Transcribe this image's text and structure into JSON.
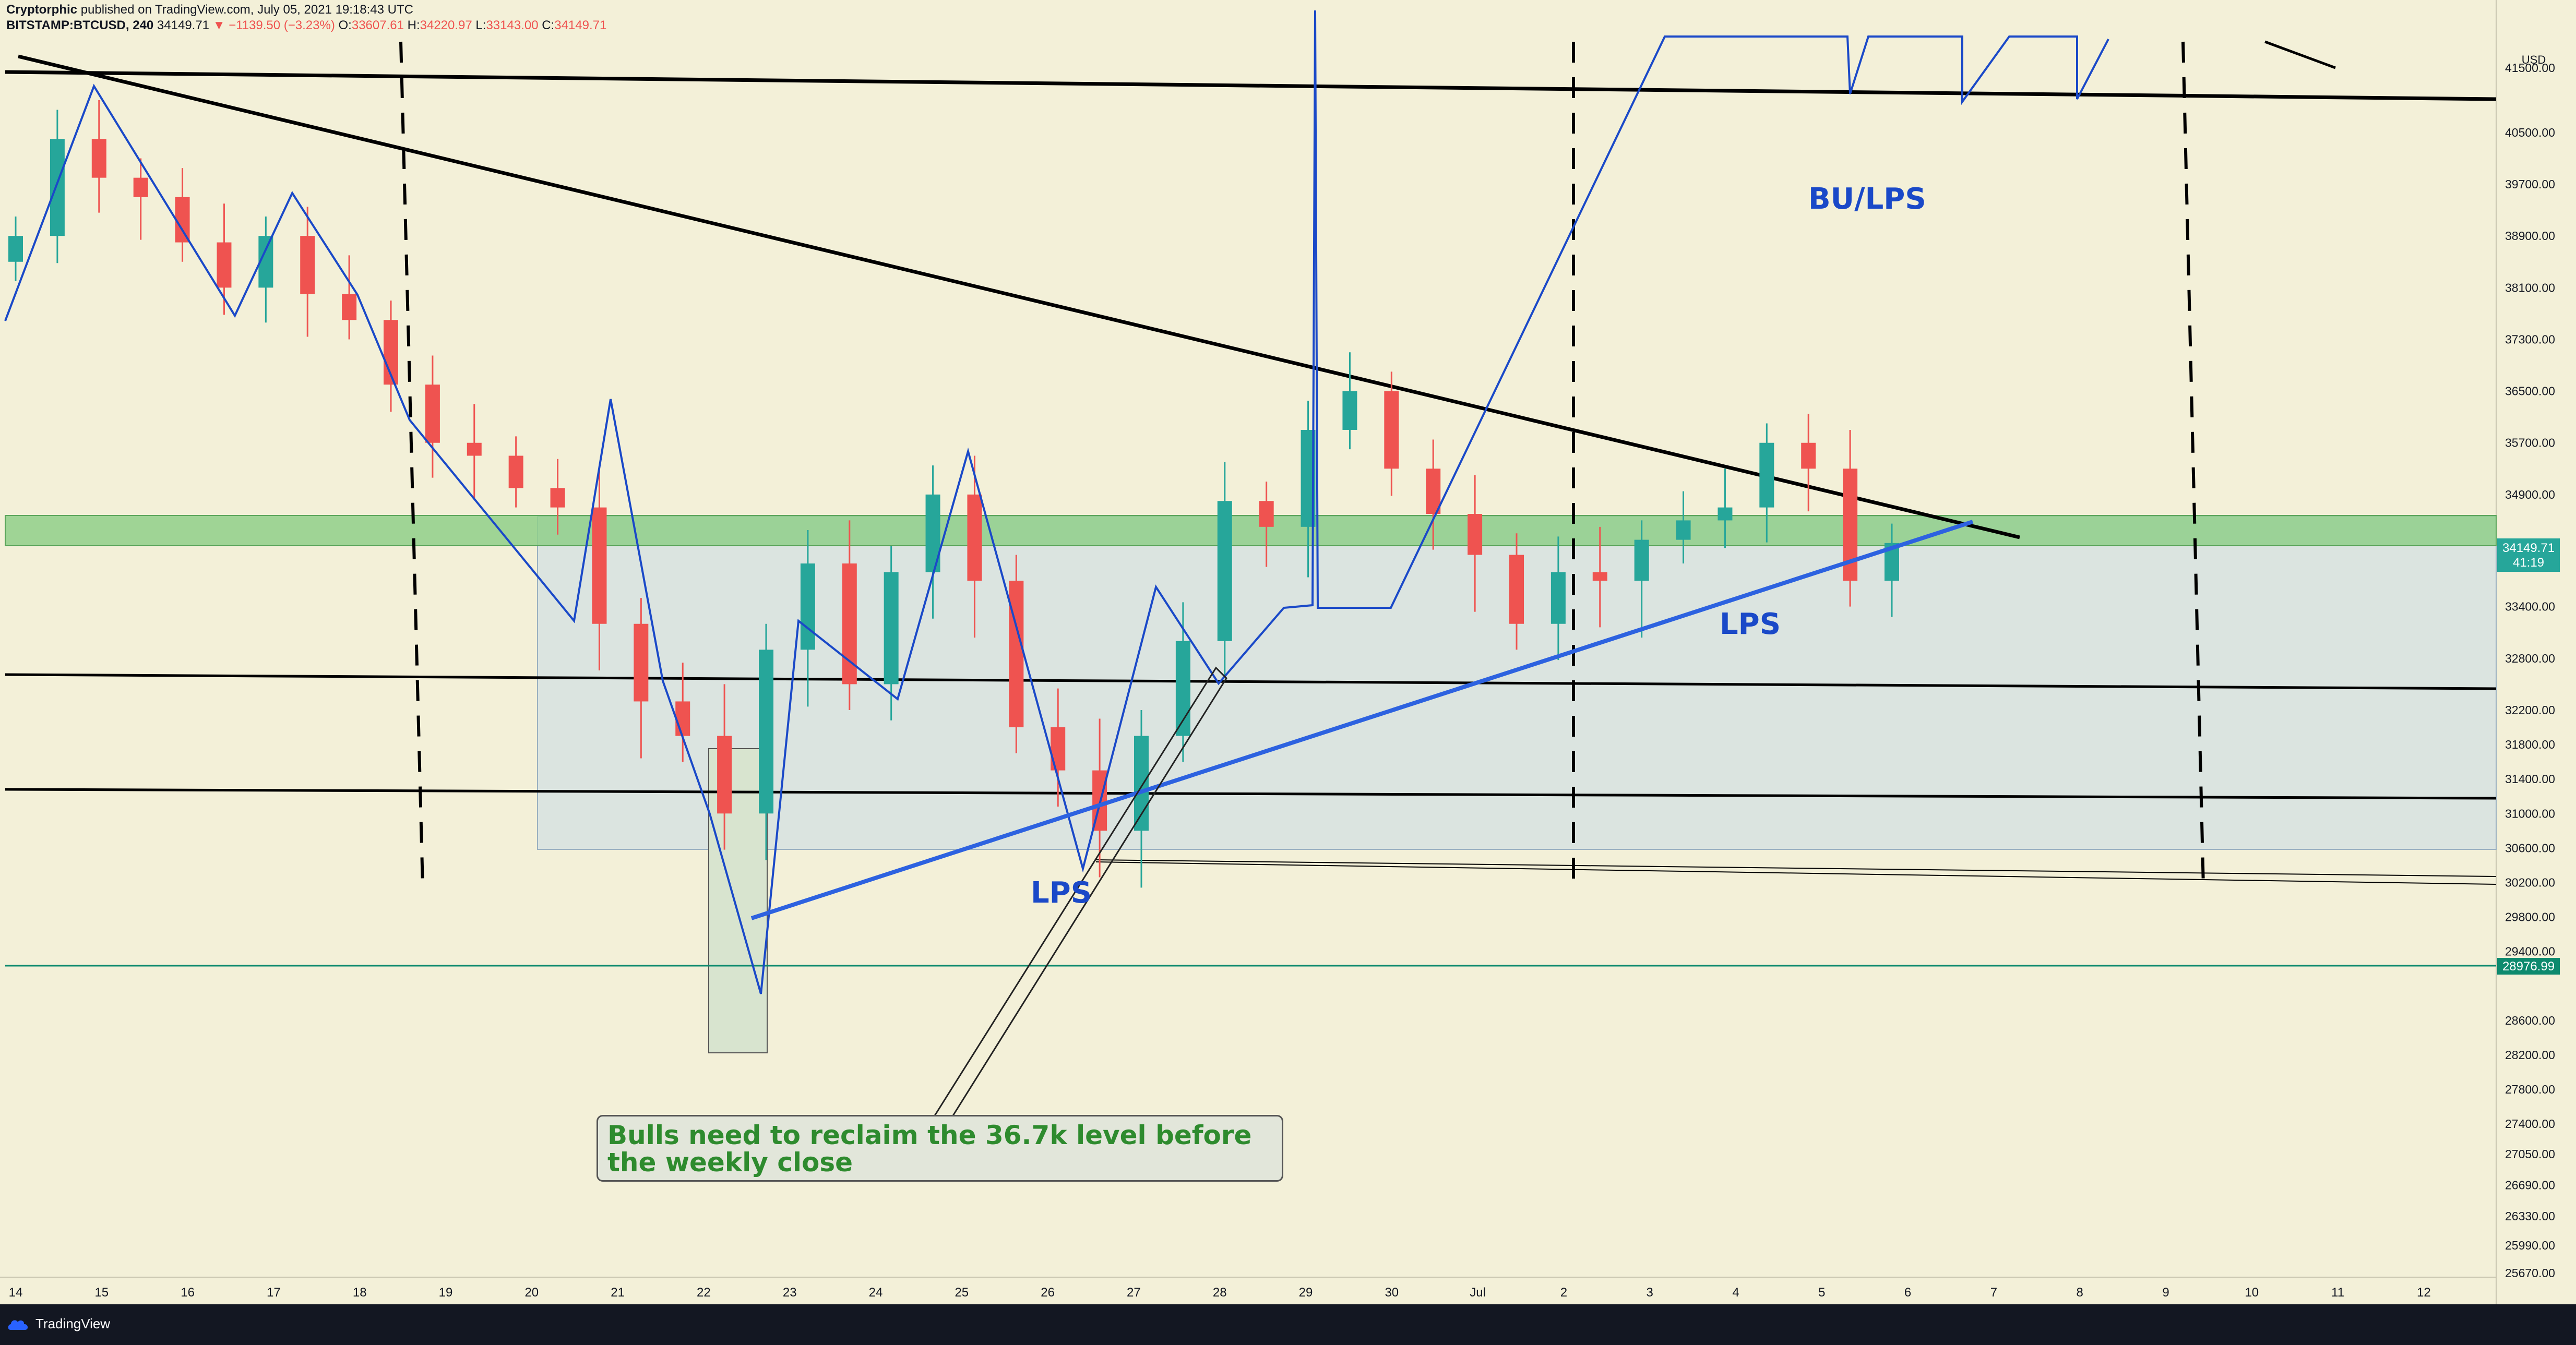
{
  "header": {
    "line1_author": "Cryptorphic",
    "line1_rest": "published on TradingView.com, July 05, 2021 19:18:43 UTC",
    "symbol": "BITSTAMP:BTCUSD, 240",
    "price": "34149.71",
    "change": "▼ −1139.50 (−3.23%)",
    "o_label": "O:",
    "o_val": "33607.61",
    "h_label": "H:",
    "h_val": "34220.97",
    "l_label": "L:",
    "l_val": "33143.00",
    "c_label": "C:",
    "c_val": "34149.71"
  },
  "annotations": {
    "bu_lps": "BU/LPS",
    "lps_left": "LPS",
    "lps_right": "LPS",
    "note": "Bulls need to reclaim the 36.7k level before the weekly close"
  },
  "axis": {
    "currency": "USD",
    "last_price": "34149.71",
    "countdown": "41:19",
    "marker_price": "28976.99"
  },
  "brand": "TradingView",
  "colors": {
    "background": "#f3f0d8",
    "up": "#26a69a",
    "down": "#ef5350",
    "pattern_line": "#1a49c8",
    "zone": "#78c878"
  },
  "chart_data": {
    "type": "candlestick",
    "symbol": "BITSTAMP:BTCUSD",
    "timeframe": "240",
    "y_range": [
      25600,
      41700
    ],
    "y_ticks": [
      41500,
      40500,
      39700,
      38900,
      38100,
      37300,
      36500,
      35700,
      34900,
      34100,
      33400,
      32800,
      32200,
      31800,
      31400,
      31000,
      30600,
      30200,
      29800,
      29400,
      28600,
      28200,
      27800,
      27400,
      27050,
      26690,
      26330,
      25990,
      25670
    ],
    "x_ticks": [
      "14",
      "15",
      "16",
      "17",
      "18",
      "19",
      "20",
      "21",
      "22",
      "23",
      "24",
      "25",
      "26",
      "27",
      "28",
      "29",
      "30",
      "Jul",
      "2",
      "3",
      "4",
      "5",
      "6",
      "7",
      "8",
      "9",
      "10",
      "11",
      "12"
    ],
    "last_candle": {
      "open": 33607.61,
      "high": 34220.97,
      "low": 33143.0,
      "close": 34149.71,
      "change": -1139.5,
      "change_pct": -3.23
    },
    "closes": [
      38900,
      40400,
      39800,
      39500,
      38800,
      38100,
      38900,
      38000,
      37600,
      36600,
      35700,
      35500,
      35000,
      34700,
      33200,
      32300,
      31900,
      31000,
      32900,
      33900,
      32500,
      33800,
      34900,
      33700,
      32000,
      31500,
      30800,
      31900,
      33000,
      34800,
      34400,
      35900,
      36500,
      35300,
      34600,
      34000,
      33200,
      33800,
      33700,
      34200,
      34500,
      34700,
      35700,
      35300,
      33700,
      34149.71
    ],
    "horizontal_levels": [
      28976.99,
      31000,
      32250
    ],
    "support_zone": [
      34100,
      34550
    ],
    "range_box": [
      30300,
      34550
    ]
  }
}
